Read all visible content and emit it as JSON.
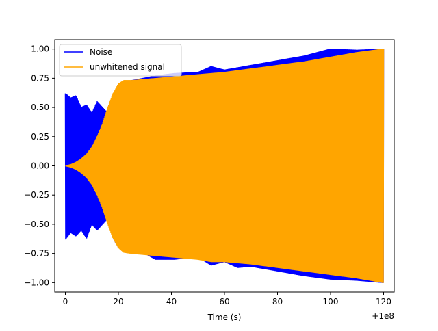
{
  "chart_data": {
    "type": "line",
    "title": "",
    "xlabel": "Time (s)",
    "ylabel": "",
    "x_offset_label": "+1e8",
    "xlim": [
      -4,
      124
    ],
    "ylim": [
      -1.08,
      1.08
    ],
    "x_ticks": [
      0,
      20,
      40,
      60,
      80,
      100,
      120
    ],
    "y_ticks": [
      -1.0,
      -0.75,
      -0.5,
      -0.25,
      0.0,
      0.25,
      0.5,
      0.75,
      1.0
    ],
    "x_tick_labels": [
      "0",
      "20",
      "40",
      "60",
      "80",
      "100",
      "120"
    ],
    "y_tick_labels": [
      "−1.00",
      "−0.75",
      "−0.50",
      "−0.25",
      "0.00",
      "0.25",
      "0.50",
      "0.75",
      "1.00"
    ],
    "grid": false,
    "legend_position": "upper-left",
    "series": [
      {
        "name": "Noise",
        "color": "#0000ff",
        "kind": "oscillating-envelope",
        "upper_envelope": [
          [
            0,
            0.62
          ],
          [
            2,
            0.58
          ],
          [
            4,
            0.6
          ],
          [
            6,
            0.5
          ],
          [
            8,
            0.52
          ],
          [
            10,
            0.45
          ],
          [
            12,
            0.55
          ],
          [
            14,
            0.5
          ],
          [
            16,
            0.45
          ],
          [
            18,
            0.6
          ],
          [
            20,
            0.68
          ],
          [
            25,
            0.73
          ],
          [
            34,
            0.77
          ],
          [
            41,
            0.79
          ],
          [
            50,
            0.8
          ],
          [
            55,
            0.85
          ],
          [
            60,
            0.82
          ],
          [
            65,
            0.84
          ],
          [
            70,
            0.86
          ],
          [
            80,
            0.9
          ],
          [
            90,
            0.94
          ],
          [
            100,
            1.0
          ],
          [
            110,
            0.99
          ],
          [
            120,
            1.0
          ]
        ],
        "lower_envelope": [
          [
            0,
            -0.63
          ],
          [
            2,
            -0.57
          ],
          [
            4,
            -0.6
          ],
          [
            6,
            -0.55
          ],
          [
            8,
            -0.62
          ],
          [
            10,
            -0.5
          ],
          [
            12,
            -0.55
          ],
          [
            14,
            -0.5
          ],
          [
            16,
            -0.45
          ],
          [
            18,
            -0.62
          ],
          [
            20,
            -0.7
          ],
          [
            25,
            -0.72
          ],
          [
            30,
            -0.75
          ],
          [
            34,
            -0.8
          ],
          [
            41,
            -0.8
          ],
          [
            50,
            -0.78
          ],
          [
            55,
            -0.85
          ],
          [
            60,
            -0.82
          ],
          [
            65,
            -0.87
          ],
          [
            70,
            -0.86
          ],
          [
            80,
            -0.9
          ],
          [
            90,
            -0.94
          ],
          [
            100,
            -0.97
          ],
          [
            110,
            -0.98
          ],
          [
            120,
            -1.0
          ]
        ]
      },
      {
        "name": "unwhitened signal",
        "color": "#ffa500",
        "kind": "oscillating-envelope",
        "upper_envelope": [
          [
            0,
            0.0
          ],
          [
            2,
            0.01
          ],
          [
            4,
            0.03
          ],
          [
            6,
            0.06
          ],
          [
            8,
            0.1
          ],
          [
            10,
            0.16
          ],
          [
            12,
            0.25
          ],
          [
            14,
            0.36
          ],
          [
            16,
            0.5
          ],
          [
            18,
            0.62
          ],
          [
            20,
            0.7
          ],
          [
            22,
            0.73
          ],
          [
            25,
            0.73
          ],
          [
            30,
            0.74
          ],
          [
            40,
            0.76
          ],
          [
            50,
            0.78
          ],
          [
            60,
            0.8
          ],
          [
            70,
            0.83
          ],
          [
            80,
            0.86
          ],
          [
            90,
            0.89
          ],
          [
            100,
            0.93
          ],
          [
            110,
            0.97
          ],
          [
            120,
            1.0
          ]
        ],
        "lower_envelope": [
          [
            0,
            0.0
          ],
          [
            2,
            -0.01
          ],
          [
            4,
            -0.03
          ],
          [
            6,
            -0.06
          ],
          [
            8,
            -0.1
          ],
          [
            10,
            -0.16
          ],
          [
            12,
            -0.25
          ],
          [
            14,
            -0.36
          ],
          [
            16,
            -0.5
          ],
          [
            18,
            -0.62
          ],
          [
            20,
            -0.7
          ],
          [
            22,
            -0.74
          ],
          [
            25,
            -0.75
          ],
          [
            30,
            -0.76
          ],
          [
            40,
            -0.78
          ],
          [
            50,
            -0.8
          ],
          [
            55,
            -0.82
          ],
          [
            60,
            -0.82
          ],
          [
            70,
            -0.84
          ],
          [
            80,
            -0.87
          ],
          [
            90,
            -0.9
          ],
          [
            100,
            -0.93
          ],
          [
            110,
            -0.96
          ],
          [
            120,
            -1.0
          ]
        ]
      }
    ]
  }
}
